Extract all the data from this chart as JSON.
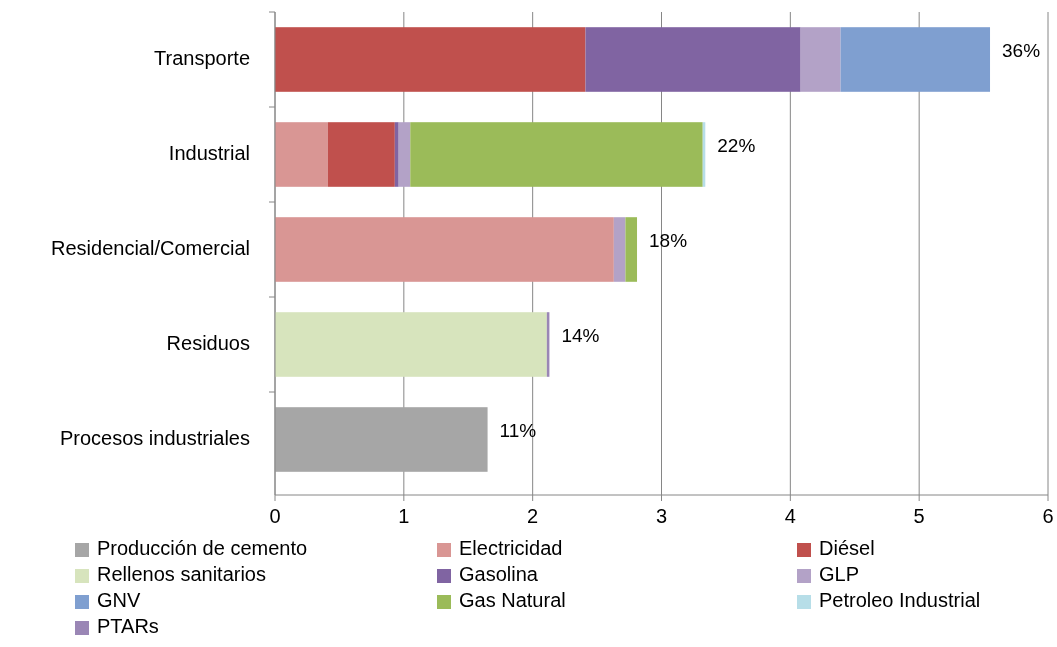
{
  "chart_data": {
    "type": "bar",
    "orientation": "horizontal",
    "stacked": true,
    "categories": [
      "Transporte",
      "Industrial",
      "Residencial/Comercial",
      "Residuos",
      "Procesos industriales"
    ],
    "series": [
      {
        "name": "Producción de cemento",
        "color": "#a6a6a6",
        "values": [
          0,
          0,
          0,
          0,
          1.65
        ]
      },
      {
        "name": "Electricidad",
        "color": "#d99694",
        "values": [
          0,
          0.41,
          2.63,
          0,
          0
        ]
      },
      {
        "name": "Diésel",
        "color": "#c0504d",
        "values": [
          2.41,
          0.52,
          0,
          0,
          0
        ]
      },
      {
        "name": "Rellenos sanitarios",
        "color": "#d7e4bd",
        "values": [
          0,
          0,
          0,
          2.11,
          0
        ]
      },
      {
        "name": "Gasolina",
        "color": "#8064a2",
        "values": [
          1.67,
          0.03,
          0,
          0,
          0
        ]
      },
      {
        "name": "GLP",
        "color": "#b3a2c7",
        "values": [
          0.31,
          0.09,
          0.09,
          0,
          0
        ]
      },
      {
        "name": "GNV",
        "color": "#7f9fd0",
        "values": [
          1.16,
          0,
          0,
          0,
          0
        ]
      },
      {
        "name": "Gas Natural",
        "color": "#9bbb59",
        "values": [
          0,
          2.27,
          0.09,
          0,
          0
        ]
      },
      {
        "name": "Petroleo Industrial",
        "color": "#b7dee8",
        "values": [
          0,
          0.02,
          0,
          0,
          0
        ]
      },
      {
        "name": "PTARs",
        "color": "#9a86b5",
        "values": [
          0,
          0,
          0,
          0.02,
          0
        ]
      }
    ],
    "annotations": [
      {
        "text": "36%",
        "x": 5.55,
        "y": "Transporte"
      },
      {
        "text": "22%",
        "x": 3.34,
        "y": "Industrial"
      },
      {
        "text": "18%",
        "x": 2.81,
        "y": "Residencial/Comercial"
      },
      {
        "text": "14%",
        "x": 2.13,
        "y": "Residuos"
      },
      {
        "text": "11%",
        "x": 1.65,
        "y": "Procesos industriales"
      }
    ],
    "xlim": [
      0,
      6
    ],
    "xticks": [
      0,
      1,
      2,
      3,
      4,
      5,
      6
    ],
    "grid": "x",
    "legend": "bottom"
  }
}
